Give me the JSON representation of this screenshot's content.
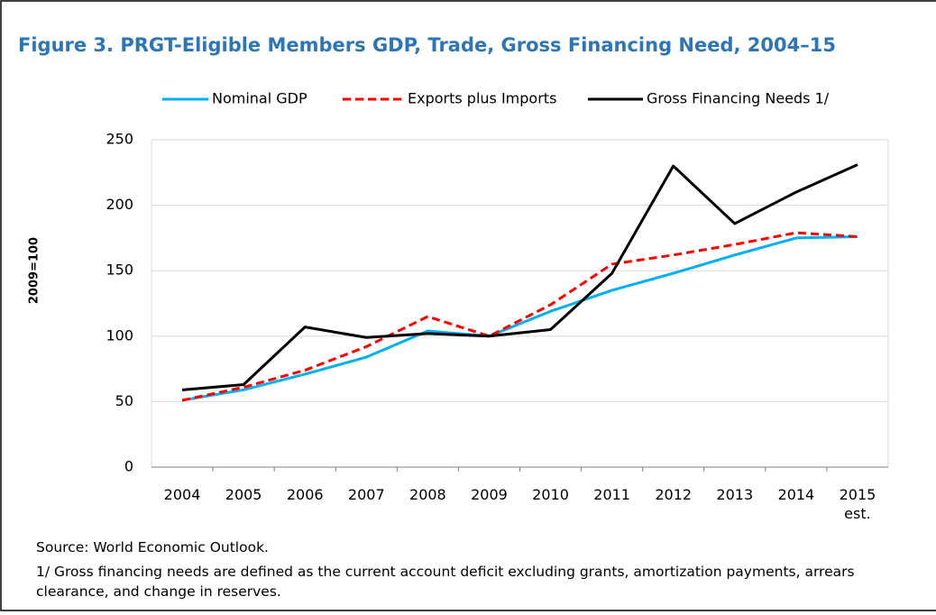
{
  "chart_data": {
    "type": "line",
    "title": "Figure 3. PRGT-Eligible Members GDP, Trade, Gross Financing Need, 2004–15",
    "y_label": "2009=100",
    "categories": [
      "2004",
      "2005",
      "2006",
      "2007",
      "2008",
      "2009",
      "2010",
      "2011",
      "2012",
      "2013",
      "2014",
      "2015\nest."
    ],
    "series": [
      {
        "name": "Nominal GDP",
        "color": "#00b0f0",
        "dashed": false,
        "values": [
          51,
          59,
          71,
          84,
          104,
          100,
          119,
          135,
          148,
          162,
          175,
          176
        ]
      },
      {
        "name": "Exports plus Imports",
        "color": "#ff0000",
        "dashed": true,
        "values": [
          51,
          61,
          74,
          92,
          115,
          100,
          124,
          155,
          162,
          170,
          179,
          176
        ]
      },
      {
        "name": "Gross Financing Needs 1/",
        "color": "#000000",
        "dashed": false,
        "values": [
          59,
          63,
          107,
          99,
          102,
          100,
          105,
          148,
          230,
          186,
          210,
          231
        ]
      }
    ],
    "ylim": [
      0,
      250
    ],
    "yticks": [
      0,
      50,
      100,
      150,
      200,
      250
    ],
    "grid": true,
    "source": "Source: World Economic Outlook.",
    "note": "1/ Gross financing needs are defined as the current account deficit excluding grants, amortization payments, arrears clearance, and change in reserves."
  }
}
